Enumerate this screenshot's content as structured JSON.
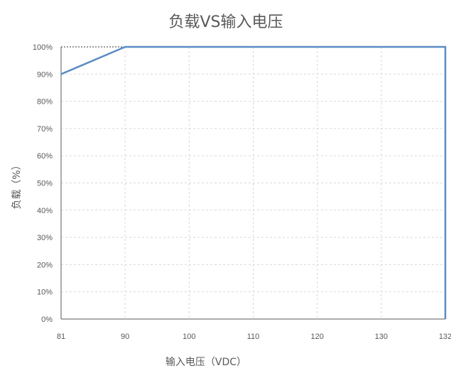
{
  "chart_data": {
    "type": "line",
    "title": "负载VS输入电压",
    "xlabel": "输入电压（VDC）",
    "ylabel": "负载（%）",
    "x_ticks": [
      81,
      90,
      100,
      110,
      120,
      130,
      132
    ],
    "y_ticks": [
      "0%",
      "10%",
      "20%",
      "30%",
      "40%",
      "50%",
      "60%",
      "70%",
      "80%",
      "90%",
      "100%"
    ],
    "xlim": [
      81,
      132
    ],
    "ylim": [
      0,
      100
    ],
    "grid": true,
    "series": [
      {
        "color": "#5b8cc4",
        "points": [
          {
            "x": 81,
            "y": 90
          },
          {
            "x": 90,
            "y": 100
          },
          {
            "x": 132,
            "y": 100
          },
          {
            "x": 132,
            "y": 0
          }
        ]
      }
    ]
  }
}
